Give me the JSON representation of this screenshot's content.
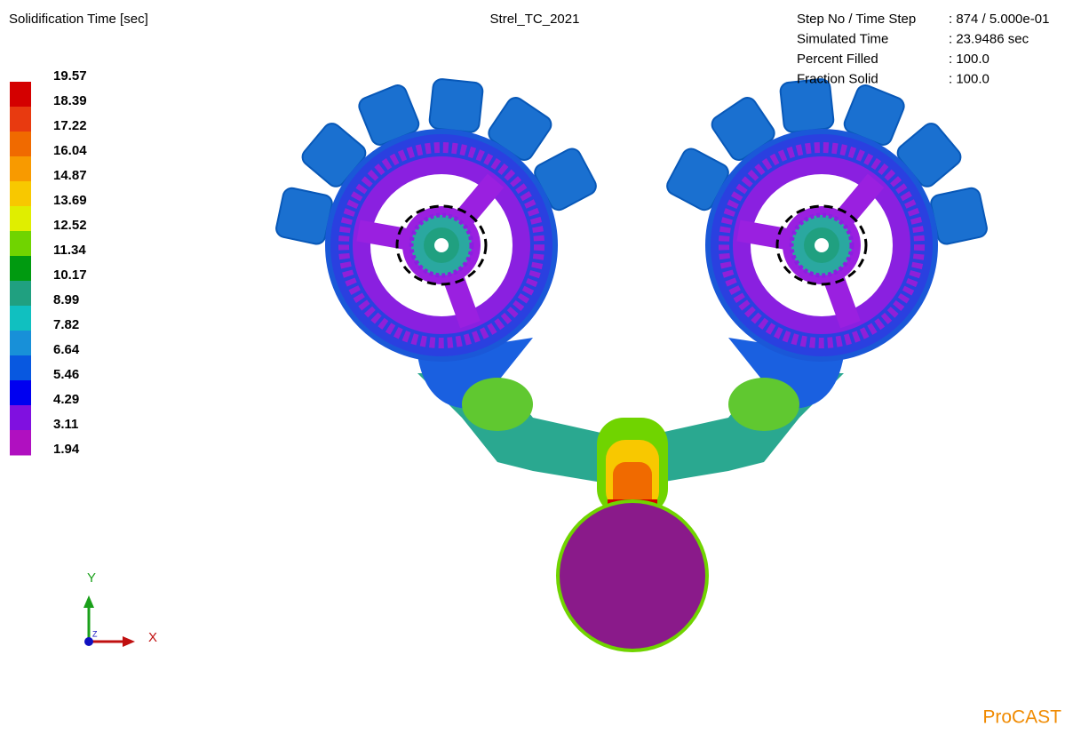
{
  "header": {
    "result_title": "Solidification Time [sec]",
    "model_name": "Strel_TC_2021",
    "info": [
      {
        "label": "Step No / Time Step",
        "value": ": 874 / 5.000e-01"
      },
      {
        "label": "Simulated Time",
        "value": ": 23.9486 sec"
      },
      {
        "label": "Percent Filled",
        "value": ": 100.0"
      },
      {
        "label": "Fraction Solid",
        "value": ": 100.0"
      }
    ]
  },
  "legend": {
    "labels": [
      "19.57",
      "18.39",
      "17.22",
      "16.04",
      "14.87",
      "13.69",
      "12.52",
      "11.34",
      "10.17",
      "8.99",
      "7.82",
      "6.64",
      "5.46",
      "4.29",
      "3.11",
      "1.94"
    ],
    "colors": [
      "#d40000",
      "#e83a10",
      "#f06a00",
      "#f89a00",
      "#f8c800",
      "#e0ee00",
      "#70d400",
      "#009a10",
      "#20a080",
      "#10c0c0",
      "#1890d8",
      "#0858e0",
      "#0000f0",
      "#8010e0",
      "#b010c0"
    ]
  },
  "axes_triad": {
    "y": "Y",
    "x": "X",
    "z": "Z"
  },
  "brand": "ProCAST"
}
